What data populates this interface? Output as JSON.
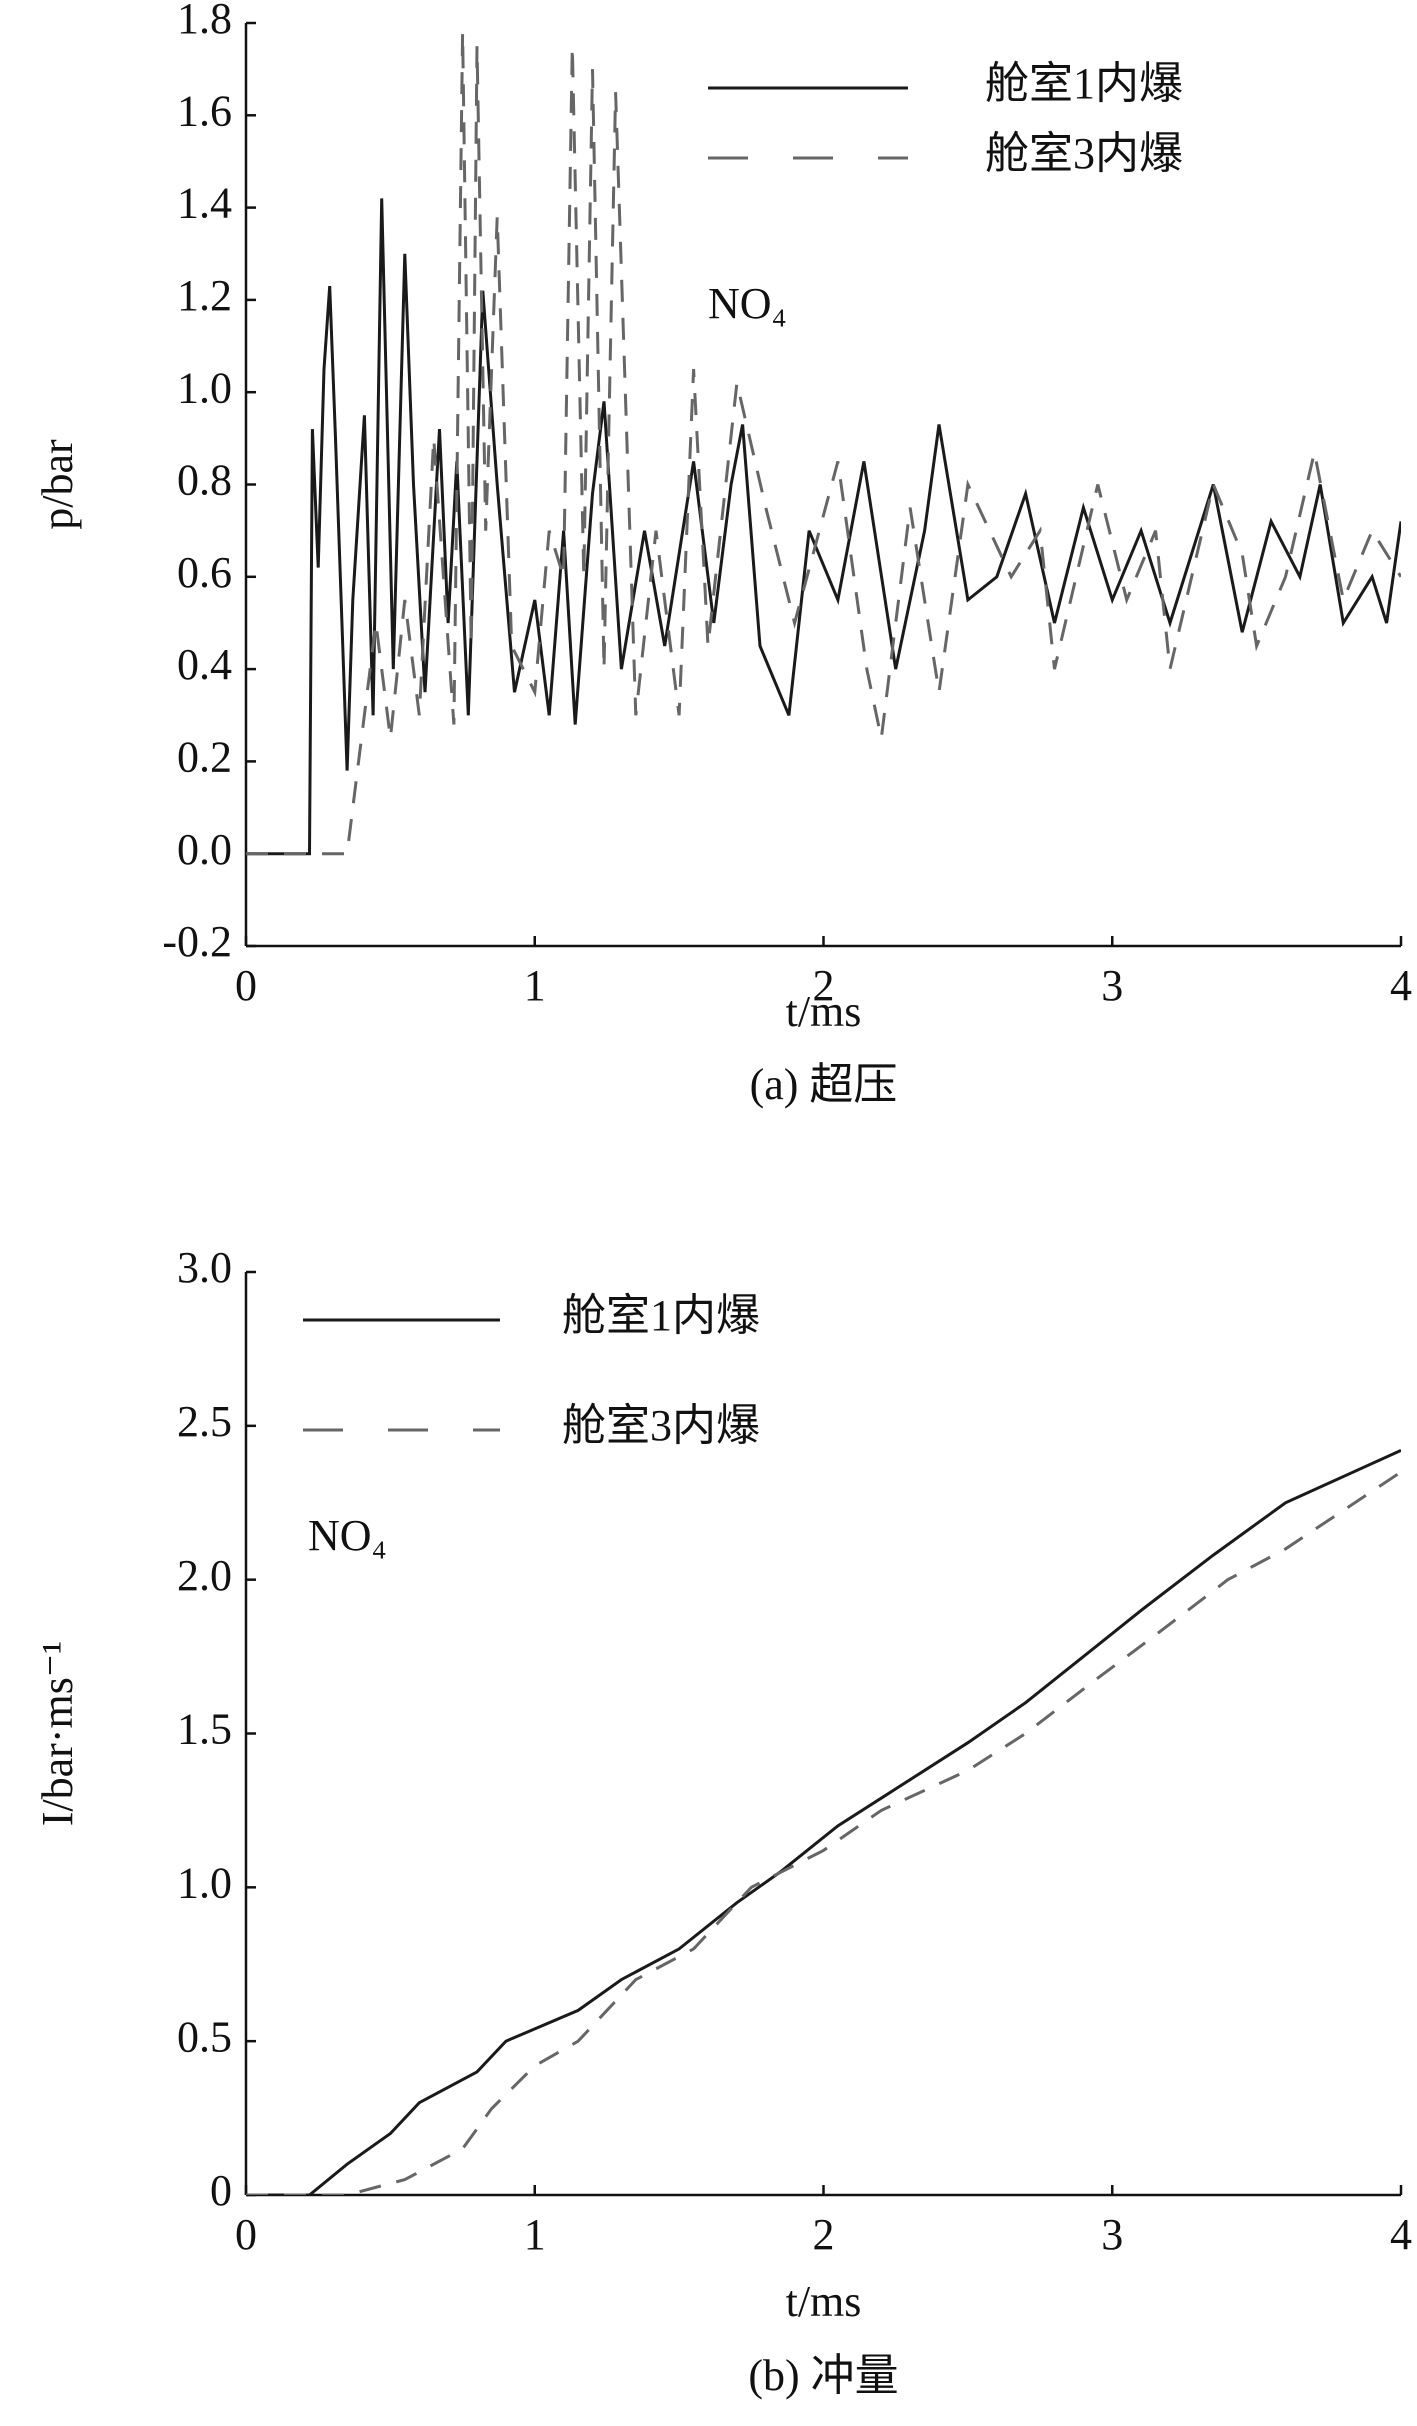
{
  "chart_data": [
    {
      "type": "line",
      "caption": "(a) 超压",
      "xlabel": "t/ms",
      "ylabel": "p/bar",
      "annotation": "NO₄",
      "xlim": [
        0,
        4
      ],
      "xticks": [
        0,
        1,
        2,
        3,
        4
      ],
      "ylim": [
        -0.2,
        1.8
      ],
      "yticks": [
        -0.2,
        {
          "value": 0,
          "label": "0.0"
        },
        0.2,
        0.4,
        0.6,
        0.8,
        {
          "value": 1,
          "label": "1.0"
        },
        1.2,
        1.4,
        1.6,
        1.8
      ],
      "legend": "upper right",
      "series": [
        {
          "name": "舱室1内爆",
          "color": "#1a1a1a",
          "style": "solid",
          "x": [
            0,
            0.22,
            0.23,
            0.25,
            0.27,
            0.29,
            0.31,
            0.35,
            0.37,
            0.41,
            0.44,
            0.47,
            0.51,
            0.55,
            0.58,
            0.62,
            0.67,
            0.7,
            0.73,
            0.77,
            0.82,
            0.87,
            0.93,
            1.0,
            1.05,
            1.1,
            1.14,
            1.2,
            1.24,
            1.3,
            1.38,
            1.45,
            1.55,
            1.62,
            1.68,
            1.72,
            1.78,
            1.88,
            1.95,
            2.05,
            2.14,
            2.25,
            2.35,
            2.4,
            2.5,
            2.6,
            2.7,
            2.8,
            2.9,
            3.0,
            3.1,
            3.2,
            3.35,
            3.45,
            3.55,
            3.65,
            3.72,
            3.8,
            3.9,
            3.95,
            4.0
          ],
          "values": [
            0,
            0,
            0.92,
            0.62,
            1.05,
            1.23,
            0.9,
            0.18,
            0.55,
            0.95,
            0.3,
            1.42,
            0.4,
            1.3,
            0.8,
            0.35,
            0.92,
            0.5,
            0.85,
            0.3,
            1.22,
            0.8,
            0.35,
            0.55,
            0.3,
            0.7,
            0.28,
            0.78,
            0.98,
            0.4,
            0.7,
            0.45,
            0.85,
            0.5,
            0.8,
            0.93,
            0.45,
            0.3,
            0.7,
            0.55,
            0.85,
            0.4,
            0.7,
            0.93,
            0.55,
            0.6,
            0.78,
            0.5,
            0.75,
            0.55,
            0.7,
            0.5,
            0.8,
            0.48,
            0.72,
            0.6,
            0.8,
            0.5,
            0.6,
            0.5,
            0.72
          ]
        },
        {
          "name": "舱室3内爆",
          "color": "#666666",
          "style": "dashed",
          "x": [
            0,
            0.35,
            0.38,
            0.45,
            0.5,
            0.55,
            0.6,
            0.65,
            0.72,
            0.75,
            0.78,
            0.8,
            0.83,
            0.87,
            0.92,
            1.0,
            1.05,
            1.1,
            1.13,
            1.17,
            1.2,
            1.24,
            1.28,
            1.35,
            1.42,
            1.5,
            1.55,
            1.6,
            1.7,
            1.8,
            1.9,
            2.05,
            2.15,
            2.2,
            2.3,
            2.4,
            2.5,
            2.65,
            2.75,
            2.8,
            2.95,
            3.05,
            3.15,
            3.2,
            3.35,
            3.45,
            3.5,
            3.6,
            3.7,
            3.8,
            3.9,
            4.0
          ],
          "values": [
            0,
            0,
            0.15,
            0.5,
            0.25,
            0.55,
            0.3,
            0.9,
            0.28,
            1.78,
            0.45,
            1.75,
            0.7,
            1.38,
            0.45,
            0.35,
            0.7,
            0.6,
            1.75,
            0.6,
            1.7,
            0.4,
            1.65,
            0.3,
            0.7,
            0.3,
            1.05,
            0.45,
            1.02,
            0.75,
            0.5,
            0.85,
            0.4,
            0.25,
            0.75,
            0.35,
            0.8,
            0.6,
            0.7,
            0.4,
            0.8,
            0.55,
            0.7,
            0.4,
            0.8,
            0.65,
            0.45,
            0.6,
            0.87,
            0.55,
            0.7,
            0.6
          ]
        }
      ]
    },
    {
      "type": "line",
      "caption": "(b) 冲量",
      "xlabel": "t/ms",
      "ylabel": "I/bar·ms⁻¹",
      "annotation": "NO₄",
      "xlim": [
        0,
        4
      ],
      "xticks": [
        0,
        1,
        2,
        3,
        4
      ],
      "ylim": [
        0,
        3
      ],
      "yticks": [
        0,
        0.5,
        {
          "value": 1,
          "label": "1.0"
        },
        1.5,
        {
          "value": 2,
          "label": "2.0"
        },
        2.5,
        {
          "value": 3,
          "label": "3.0"
        }
      ],
      "legend": "upper left",
      "series": [
        {
          "name": "舱室1内爆",
          "color": "#1a1a1a",
          "style": "solid",
          "x": [
            0,
            0.22,
            0.35,
            0.5,
            0.6,
            0.8,
            0.9,
            1.15,
            1.3,
            1.5,
            1.7,
            1.85,
            2.05,
            2.25,
            2.5,
            2.7,
            2.9,
            3.1,
            3.35,
            3.6,
            4.0
          ],
          "values": [
            0,
            0,
            0.1,
            0.2,
            0.3,
            0.4,
            0.5,
            0.6,
            0.7,
            0.8,
            0.95,
            1.05,
            1.2,
            1.32,
            1.47,
            1.6,
            1.75,
            1.9,
            2.08,
            2.25,
            2.42
          ]
        },
        {
          "name": "舱室3内爆",
          "color": "#666666",
          "style": "dashed",
          "x": [
            0,
            0.35,
            0.55,
            0.75,
            0.85,
            1.0,
            1.15,
            1.35,
            1.55,
            1.75,
            2.0,
            2.2,
            2.5,
            2.7,
            2.95,
            3.15,
            3.4,
            3.6,
            4.0
          ],
          "values": [
            0,
            0,
            0.05,
            0.15,
            0.28,
            0.42,
            0.5,
            0.7,
            0.8,
            1.0,
            1.12,
            1.25,
            1.38,
            1.5,
            1.68,
            1.82,
            2.0,
            2.1,
            2.35
          ]
        }
      ]
    }
  ]
}
